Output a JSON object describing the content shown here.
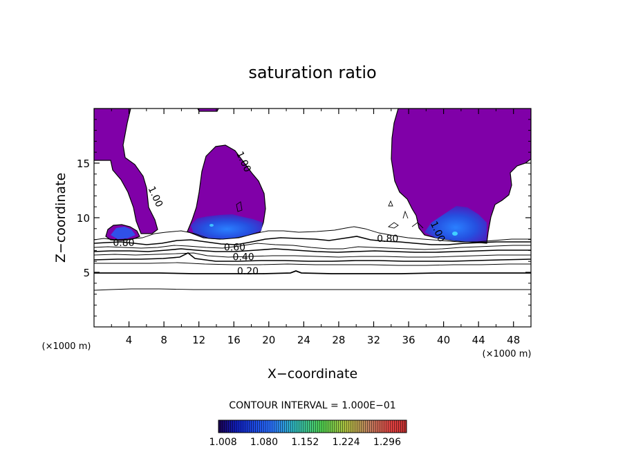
{
  "chart_data": {
    "type": "contour",
    "title": "saturation ratio",
    "xlabel": "X−coordinate",
    "ylabel": "Z−coordinate",
    "x_unit_left": "(×1000 m)",
    "x_unit_right": "(×1000 m)",
    "xlim": [
      0,
      50
    ],
    "ylim": [
      0,
      20
    ],
    "xticks": [
      4,
      8,
      12,
      16,
      20,
      24,
      28,
      32,
      36,
      40,
      44,
      48
    ],
    "yticks": [
      5,
      10,
      15
    ],
    "contour_interval_text": "CONTOUR INTERVAL = 1.000E−01",
    "contour_line_labels": [
      {
        "text": "0.80",
        "x": 3.4,
        "z": 7.4
      },
      {
        "text": "0.60",
        "x": 16.1,
        "z": 7.0
      },
      {
        "text": "0.40",
        "x": 17.1,
        "z": 6.1
      },
      {
        "text": "0.20",
        "x": 17.6,
        "z": 4.8
      },
      {
        "text": "0.80",
        "x": 33.6,
        "z": 7.8
      },
      {
        "text": "1.00",
        "x": 16.8,
        "z": 15.0
      },
      {
        "text": "1.00",
        "x": 6.7,
        "z": 11.8
      },
      {
        "text": "1.00",
        "x": 39.0,
        "z": 8.6
      }
    ],
    "colorbar": {
      "range": [
        1.0,
        1.33
      ],
      "tick_labels": [
        "1.008",
        "1.080",
        "1.152",
        "1.224",
        "1.296"
      ]
    },
    "fill_color_supersaturated": "#8000a8",
    "grid": false
  }
}
